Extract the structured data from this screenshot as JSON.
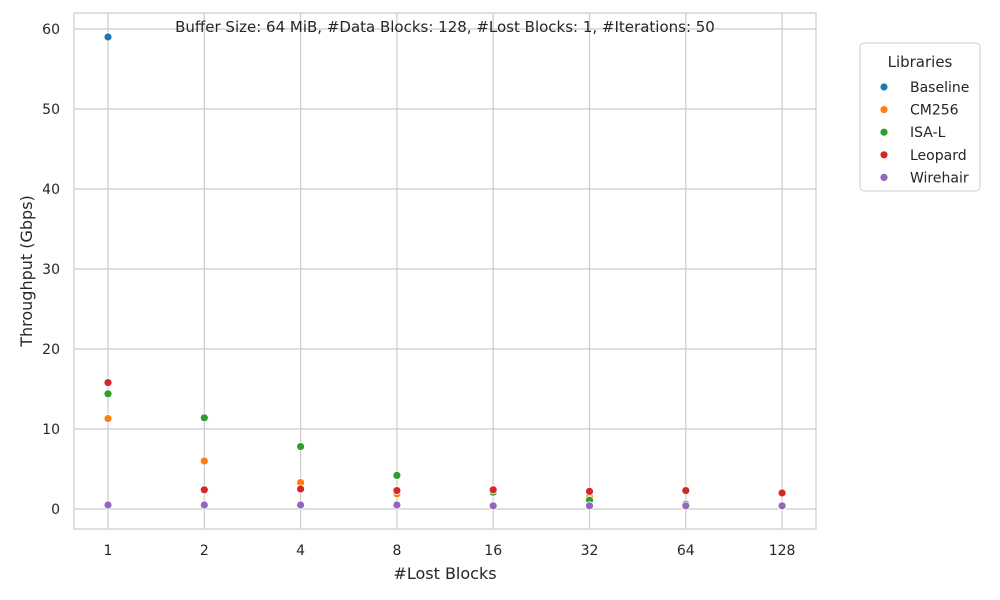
{
  "chart_data": {
    "type": "scatter",
    "title": "Buffer Size: 64 MiB, #Data Blocks: 128, #Lost Blocks: 1, #Iterations: 50",
    "xlabel": "#Lost Blocks",
    "ylabel": "Throughput (Gbps)",
    "x_categories": [
      "1",
      "2",
      "4",
      "8",
      "16",
      "32",
      "64",
      "128"
    ],
    "y_ticks": [
      0,
      10,
      20,
      30,
      40,
      50,
      60
    ],
    "ylim": [
      -2.5,
      62
    ],
    "grid": true,
    "legend": {
      "title": "Libraries",
      "placement": "outside-top-right"
    },
    "series": [
      {
        "name": "Baseline",
        "color": "#1f77b4",
        "x": [
          "1"
        ],
        "y": [
          59.0
        ]
      },
      {
        "name": "CM256",
        "color": "#ff7f0e",
        "x": [
          "1",
          "2",
          "4",
          "8",
          "16",
          "32",
          "64",
          "128"
        ],
        "y": [
          11.3,
          6.0,
          3.3,
          1.9,
          2.1,
          1.5,
          0.7,
          0.3
        ]
      },
      {
        "name": "ISA-L",
        "color": "#2ca02c",
        "x": [
          "1",
          "2",
          "4",
          "8",
          "16",
          "32",
          "64",
          "128"
        ],
        "y": [
          14.4,
          11.4,
          7.8,
          4.2,
          2.1,
          1.1,
          0.6,
          0.3
        ]
      },
      {
        "name": "Leopard",
        "color": "#d62728",
        "x": [
          "1",
          "2",
          "4",
          "8",
          "16",
          "32",
          "64",
          "128"
        ],
        "y": [
          15.8,
          2.4,
          2.5,
          2.3,
          2.4,
          2.2,
          2.3,
          2.0
        ]
      },
      {
        "name": "Wirehair",
        "color": "#9467bd",
        "x": [
          "1",
          "2",
          "4",
          "8",
          "16",
          "32",
          "64",
          "128"
        ],
        "y": [
          0.5,
          0.5,
          0.5,
          0.5,
          0.4,
          0.4,
          0.4,
          0.4
        ]
      }
    ]
  }
}
